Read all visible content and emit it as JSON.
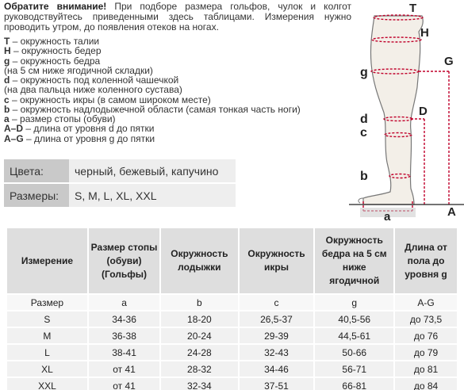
{
  "intro": {
    "attention": "Обратите внимание!",
    "text": "При подборе размера гольфов, чулок и колгот руководствуйтесь приведенными здесь таблицами. Измерения нужно проводить утром, до появления отеков на ногах."
  },
  "legend": [
    {
      "key": "T",
      "text": " – окружность талии"
    },
    {
      "key": "H",
      "text": " – окружность бедер"
    },
    {
      "key": "g",
      "text": " – окружность бедра"
    },
    {
      "key": "",
      "text": "(на 5 см ниже ягодичной складки)"
    },
    {
      "key": "d",
      "text": " – окружность под коленной чашечкой"
    },
    {
      "key": "",
      "text": "(на два пальца ниже коленного сустава)"
    },
    {
      "key": "c",
      "text": " – окружность икры (в самом широком месте)"
    },
    {
      "key": "b",
      "text": " – окружность надлодыжечной области (самая тонкая часть ноги)"
    },
    {
      "key": "a",
      "text": " – размер стопы (обуви)"
    },
    {
      "key": "A–D",
      "text": " – длина от уровня d до пятки"
    },
    {
      "key": "A–G",
      "text": " – длина от уровня g до пятки"
    }
  ],
  "specs": {
    "colors_label": "Цвета:",
    "colors_value": "черный, бежевый, капучино",
    "sizes_label": "Размеры:",
    "sizes_value": "S, M, L, XL, XXL"
  },
  "diagram": {
    "labels": {
      "T": "T",
      "H": "H",
      "g": "g",
      "G": "G",
      "d": "d",
      "D": "D",
      "c": "c",
      "b": "b",
      "a": "a",
      "A": "A"
    },
    "line_color": "#c0002a"
  },
  "table": {
    "headers": [
      "Измерение",
      "Размер стопы (обуви) (Гольфы)",
      "Окружность лодыжки",
      "Окружность икры",
      "Окружность бедра на 5 см ниже ягодичной",
      "Длина от пола до уровня g"
    ],
    "unit_row": [
      "Размер",
      "a",
      "b",
      "c",
      "g",
      "A-G"
    ],
    "rows": [
      [
        "S",
        "34-36",
        "18-20",
        "26,5-37",
        "40,5-56",
        "до 73,5"
      ],
      [
        "M",
        "36-38",
        "20-24",
        "29-39",
        "44,5-61",
        "до 76"
      ],
      [
        "L",
        "38-41",
        "24-28",
        "32-43",
        "50-66",
        "до 79"
      ],
      [
        "XL",
        "от 41",
        "28-32",
        "34-46",
        "56-71",
        "до 81"
      ],
      [
        "XXL",
        "от 41",
        "32-34",
        "37-51",
        "66-81",
        "до 84"
      ]
    ]
  }
}
